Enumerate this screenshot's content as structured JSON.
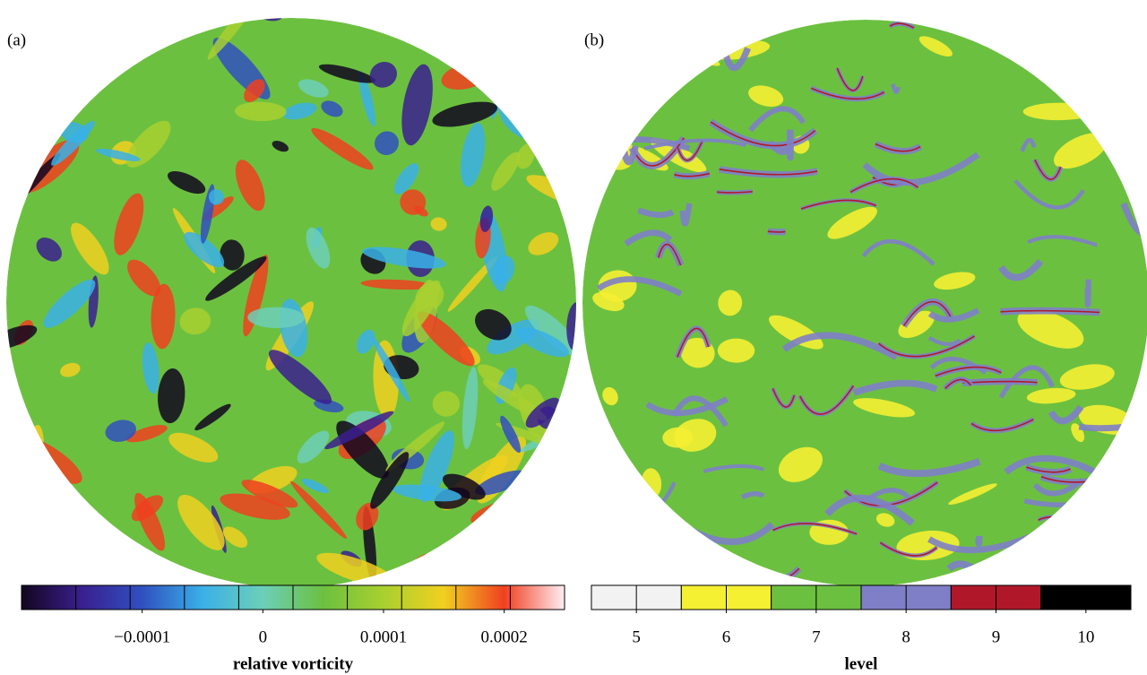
{
  "panels": [
    {
      "label": "(a)",
      "colorbar": {
        "label": "relative vorticity",
        "lim": [
          -0.0002,
          0.00025
        ],
        "ticks": [
          {
            "value": -0.0001,
            "label": "−0.0001"
          },
          0,
          0.0001,
          0.0002
        ],
        "colors": [
          "#12061e",
          "#3a1f8f",
          "#3050c0",
          "#3ab0e8",
          "#6ccfb8",
          "#6cc040",
          "#a8d030",
          "#f0d020",
          "#f04020",
          "#ffeef4"
        ]
      }
    },
    {
      "label": "(b)",
      "colorbar": {
        "label": "level",
        "lim": [
          4.5,
          10.5
        ],
        "ticks": [
          5,
          6,
          7,
          8,
          9,
          10
        ],
        "colors": [
          "#f2f2f2",
          "#f5f032",
          "#6cc040",
          "#7f7fc8",
          "#b0182a",
          "#000000"
        ]
      }
    }
  ]
}
